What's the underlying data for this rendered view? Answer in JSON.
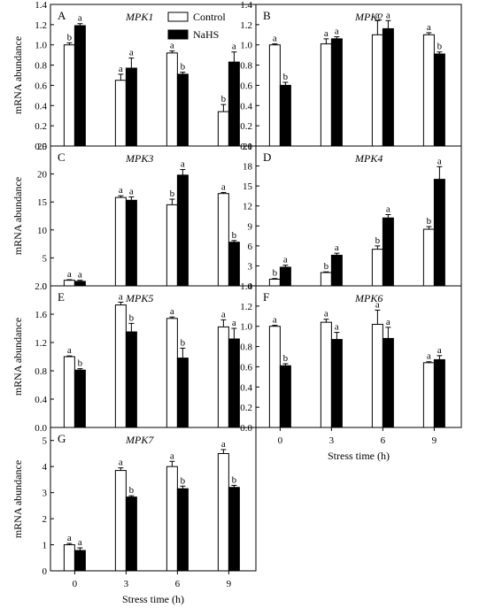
{
  "legend": {
    "control": "Control",
    "nahs": "NaHS"
  },
  "series_colors": {
    "Control": "#ffffff",
    "NaHS": "#000000"
  },
  "chart_data": [
    {
      "type": "bar",
      "panel": "A",
      "title": "MPK1",
      "ylabel": "mRNA abundance",
      "xlabel": "",
      "categories": [
        "0",
        "3",
        "6",
        "9"
      ],
      "ylim": [
        0,
        1.4
      ],
      "yticks": [
        "0.0",
        "0.2",
        "0.4",
        "0.6",
        "0.8",
        "1.0",
        "1.2",
        "1.4"
      ],
      "show_xticks": false,
      "series": [
        {
          "name": "Control",
          "values": [
            1.0,
            0.65,
            0.92,
            0.34
          ],
          "errors": [
            0.02,
            0.06,
            0.02,
            0.07
          ],
          "letters": [
            "b",
            "a",
            "a",
            "b"
          ]
        },
        {
          "name": "NaHS",
          "values": [
            1.19,
            0.77,
            0.71,
            0.83
          ],
          "errors": [
            0.02,
            0.1,
            0.02,
            0.1
          ],
          "letters": [
            "a",
            "a",
            "b",
            "a"
          ]
        }
      ]
    },
    {
      "type": "bar",
      "panel": "B",
      "title": "MPK2",
      "ylabel": "",
      "xlabel": "",
      "categories": [
        "0",
        "3",
        "6",
        "9"
      ],
      "ylim": [
        0,
        1.4
      ],
      "yticks": [
        "0.0",
        "0.2",
        "0.4",
        "0.6",
        "0.8",
        "1.0",
        "1.2",
        "1.4"
      ],
      "show_xticks": false,
      "series": [
        {
          "name": "Control",
          "values": [
            1.0,
            1.01,
            1.1,
            1.1
          ],
          "errors": [
            0.01,
            0.05,
            0.14,
            0.02
          ],
          "letters": [
            "a",
            "a",
            "a",
            "a"
          ]
        },
        {
          "name": "NaHS",
          "values": [
            0.6,
            1.06,
            1.16,
            0.91
          ],
          "errors": [
            0.03,
            0.02,
            0.08,
            0.02
          ],
          "letters": [
            "b",
            "a",
            "a",
            "b"
          ]
        }
      ]
    },
    {
      "type": "bar",
      "panel": "C",
      "title": "MPK3",
      "ylabel": "mRNA abundance",
      "xlabel": "",
      "categories": [
        "0",
        "3",
        "6",
        "9"
      ],
      "ylim": [
        0,
        25
      ],
      "yticks": [
        "0",
        "5",
        "10",
        "15",
        "20",
        "25"
      ],
      "show_xticks": false,
      "series": [
        {
          "name": "Control",
          "values": [
            1.0,
            15.8,
            14.5,
            16.5
          ],
          "errors": [
            0.1,
            0.3,
            1.0,
            0.2
          ],
          "letters": [
            "a",
            "a",
            "b",
            "a"
          ]
        },
        {
          "name": "NaHS",
          "values": [
            0.8,
            15.3,
            19.8,
            7.8
          ],
          "errors": [
            0.2,
            0.6,
            1.0,
            0.3
          ],
          "letters": [
            "a",
            "a",
            "a",
            "b"
          ]
        }
      ]
    },
    {
      "type": "bar",
      "panel": "D",
      "title": "MPK4",
      "ylabel": "",
      "xlabel": "",
      "categories": [
        "0",
        "3",
        "6",
        "9"
      ],
      "ylim": [
        0,
        21
      ],
      "yticks": [
        "0",
        "3",
        "6",
        "9",
        "12",
        "15",
        "18",
        "21"
      ],
      "show_xticks": false,
      "series": [
        {
          "name": "Control",
          "values": [
            1.0,
            2.0,
            5.5,
            8.5
          ],
          "errors": [
            0.1,
            0.1,
            0.5,
            0.4
          ],
          "letters": [
            "b",
            "b",
            "b",
            "b"
          ]
        },
        {
          "name": "NaHS",
          "values": [
            2.8,
            4.6,
            10.2,
            16.0
          ],
          "errors": [
            0.3,
            0.3,
            0.5,
            1.9
          ],
          "letters": [
            "a",
            "a",
            "a",
            "a"
          ]
        }
      ]
    },
    {
      "type": "bar",
      "panel": "E",
      "title": "MPK5",
      "ylabel": "mRNA abundance",
      "xlabel": "",
      "categories": [
        "0",
        "3",
        "6",
        "9"
      ],
      "ylim": [
        0,
        2.0
      ],
      "yticks": [
        "0.0",
        "0.4",
        "0.8",
        "1.2",
        "1.6",
        "2.0"
      ],
      "show_xticks": false,
      "series": [
        {
          "name": "Control",
          "values": [
            1.0,
            1.73,
            1.54,
            1.42
          ],
          "errors": [
            0.01,
            0.04,
            0.02,
            0.1
          ],
          "letters": [
            "a",
            "a",
            "a",
            "a"
          ]
        },
        {
          "name": "NaHS",
          "values": [
            0.81,
            1.35,
            0.98,
            1.25
          ],
          "errors": [
            0.02,
            0.12,
            0.14,
            0.15
          ],
          "letters": [
            "b",
            "b",
            "b",
            "a"
          ]
        }
      ]
    },
    {
      "type": "bar",
      "panel": "F",
      "title": "MPK6",
      "ylabel": "",
      "xlabel": "Stress time (h)",
      "categories": [
        "0",
        "3",
        "6",
        "9"
      ],
      "ylim": [
        0,
        1.4
      ],
      "yticks": [
        "0.0",
        "0.2",
        "0.4",
        "0.6",
        "0.8",
        "1.0",
        "1.2",
        "1.4"
      ],
      "show_xticks": true,
      "series": [
        {
          "name": "Control",
          "values": [
            1.0,
            1.04,
            1.02,
            0.64
          ],
          "errors": [
            0.01,
            0.03,
            0.14,
            0.01
          ],
          "letters": [
            "a",
            "a",
            "a",
            "a"
          ]
        },
        {
          "name": "NaHS",
          "values": [
            0.61,
            0.87,
            0.88,
            0.67
          ],
          "errors": [
            0.02,
            0.07,
            0.11,
            0.04
          ],
          "letters": [
            "b",
            "a",
            "a",
            "a"
          ]
        }
      ]
    },
    {
      "type": "bar",
      "panel": "G",
      "title": "MPK7",
      "ylabel": "mRNA abundance",
      "xlabel": "Stress time (h)",
      "categories": [
        "0",
        "3",
        "6",
        "9"
      ],
      "ylim": [
        0,
        5.5
      ],
      "yticks": [
        "0",
        "1",
        "2",
        "3",
        "4",
        "5"
      ],
      "show_xticks": true,
      "series": [
        {
          "name": "Control",
          "values": [
            1.0,
            3.85,
            4.0,
            4.5
          ],
          "errors": [
            0.05,
            0.1,
            0.2,
            0.15
          ],
          "letters": [
            "a",
            "a",
            "a",
            "a"
          ]
        },
        {
          "name": "NaHS",
          "values": [
            0.78,
            2.83,
            3.15,
            3.2
          ],
          "errors": [
            0.1,
            0.05,
            0.1,
            0.08
          ],
          "letters": [
            "a",
            "b",
            "b",
            "b"
          ]
        }
      ]
    }
  ]
}
